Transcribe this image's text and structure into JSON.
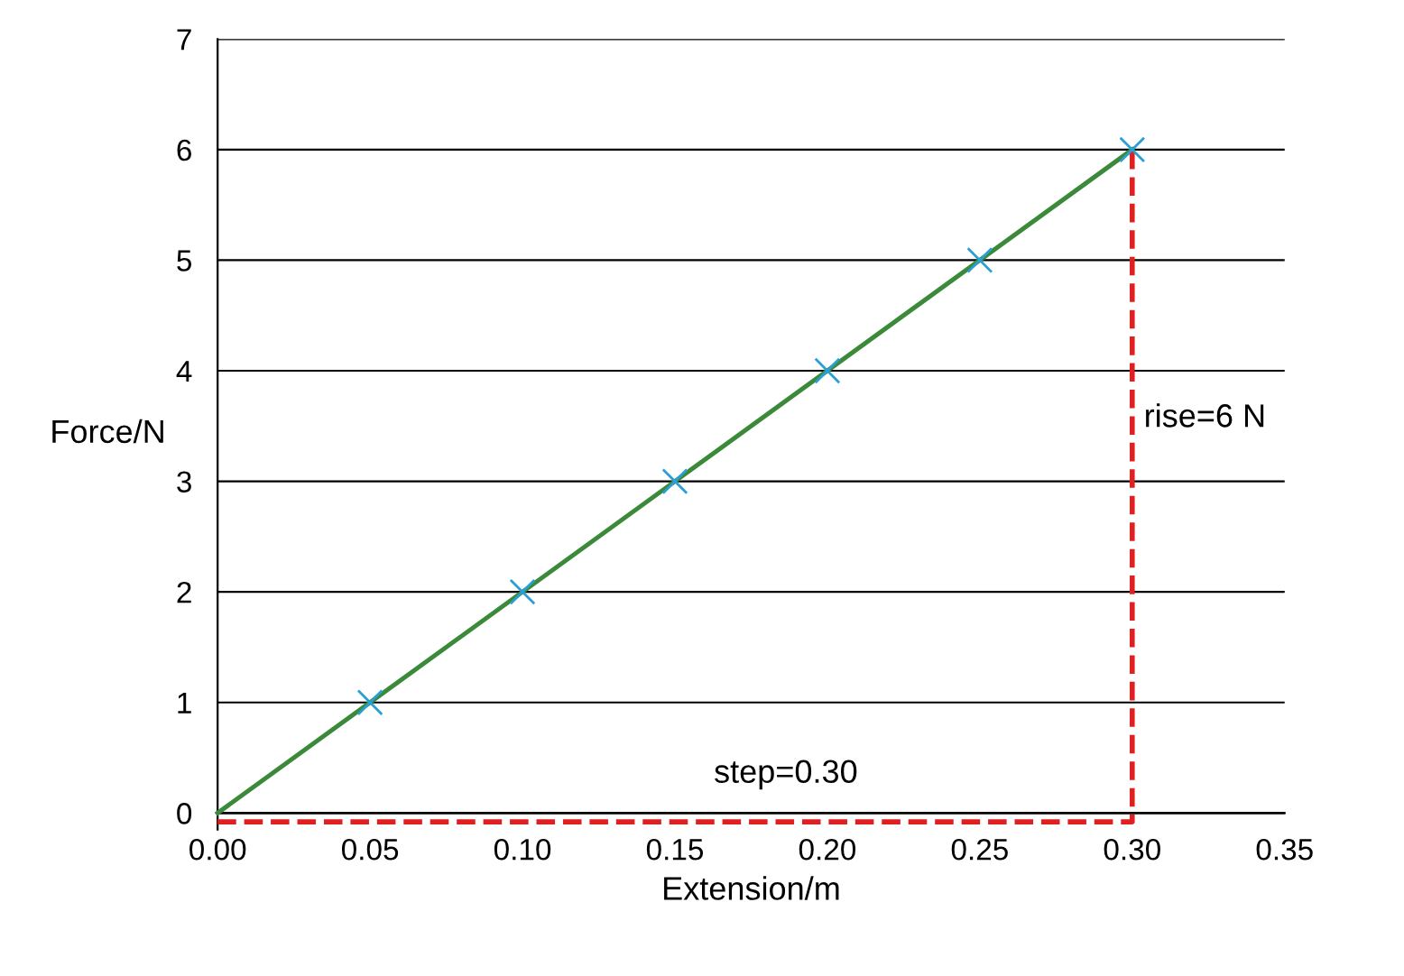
{
  "chart_data": {
    "type": "scatter",
    "xlabel": "Extension/m",
    "ylabel": "Force/N",
    "xlim": [
      0,
      0.35
    ],
    "xticks": [
      {
        "value": 0,
        "label": "0.00"
      },
      0.05,
      {
        "value": 0.1,
        "label": "0.10"
      },
      0.15,
      {
        "value": 0.2,
        "label": "0.20"
      },
      0.25,
      {
        "value": 0.3,
        "label": "0.30"
      },
      0.35
    ],
    "ylim": [
      -0.15,
      7
    ],
    "yticks": [
      0,
      1,
      2,
      3,
      4,
      5,
      6,
      7
    ],
    "grid": "y",
    "legend": false,
    "series": [
      {
        "color": "#2a9fd6",
        "marker": "cross",
        "x": [
          0.05,
          0.1,
          0.15,
          0.2,
          0.25,
          0.3
        ],
        "values": [
          1,
          2,
          3,
          4,
          5,
          6
        ]
      },
      {
        "type": "line",
        "color": "#3a8a3a",
        "line_style": "solid",
        "marker": "none",
        "x": [
          0,
          0.3
        ],
        "values": [
          0,
          6
        ]
      },
      {
        "type": "line",
        "color": "#e02020",
        "line_style": "dashed",
        "marker": "none",
        "x": [
          0,
          0.3,
          0.3
        ],
        "values": [
          -0.08,
          -0.08,
          6
        ]
      }
    ],
    "annotations": [
      "rise=6 N",
      "step=0.30"
    ]
  }
}
